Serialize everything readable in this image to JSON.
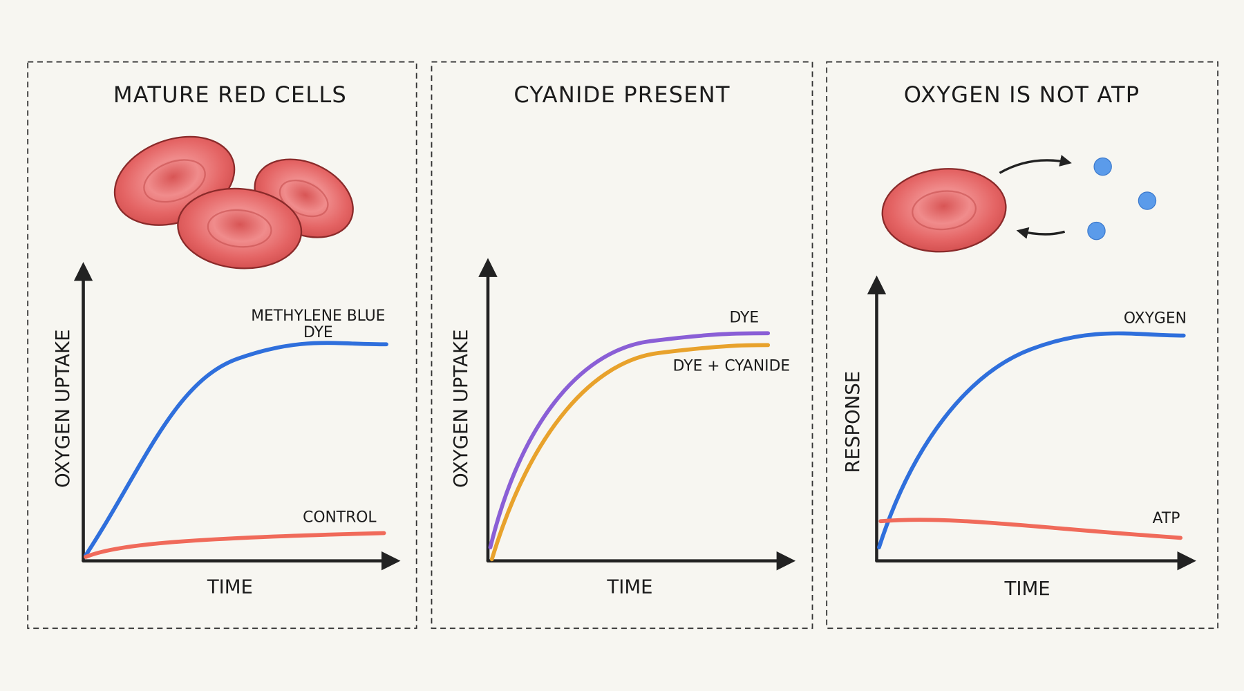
{
  "panels": [
    {
      "title": "MATURE RED CELLS",
      "y_label": "OXYGEN UPTAKE",
      "x_label": "TIME",
      "curves": [
        {
          "label_lines": [
            "METHYLENE BLUE",
            "DYE"
          ]
        },
        {
          "label_lines": [
            "CONTROL"
          ]
        }
      ]
    },
    {
      "title": "CYANIDE PRESENT",
      "y_label": "OXYGEN UPTAKE",
      "x_label": "TIME",
      "curves": [
        {
          "label_lines": [
            "DYE"
          ]
        },
        {
          "label_lines": [
            "DYE + CYANIDE"
          ]
        }
      ]
    },
    {
      "title": "OXYGEN IS NOT ATP",
      "y_label": "RESPONSE",
      "x_label": "TIME",
      "curves": [
        {
          "label_lines": [
            "OXYGEN"
          ]
        },
        {
          "label_lines": [
            "ATP"
          ]
        }
      ]
    }
  ]
}
